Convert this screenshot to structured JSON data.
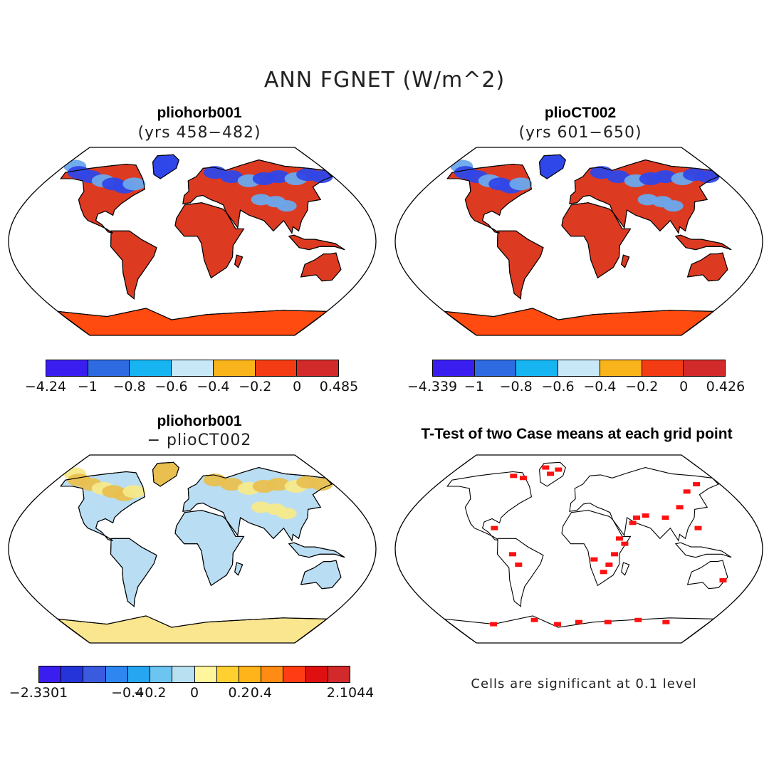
{
  "title": "ANN FGNET (W/m^2)",
  "panels": [
    {
      "title": "pliohorb001",
      "subtitle": "(yrs 458−482)",
      "colorbar": {
        "colors": [
          "#3a1ef0",
          "#2e6ae0",
          "#16b4f0",
          "#c8e8f8",
          "#f8b41a",
          "#f43c14",
          "#d22a2a"
        ],
        "ticks": [
          "−4.24",
          "−1",
          "−0.8",
          "−0.6",
          "−0.4",
          "−0.2",
          "0",
          "0.485"
        ]
      }
    },
    {
      "title": "plioCT002",
      "subtitle": "(yrs 601−650)",
      "colorbar": {
        "colors": [
          "#3a1ef0",
          "#2e6ae0",
          "#16b4f0",
          "#c8e8f8",
          "#f8b41a",
          "#f43c14",
          "#d22a2a"
        ],
        "ticks": [
          "−4.339",
          "−1",
          "−0.8",
          "−0.6",
          "−0.4",
          "−0.2",
          "0",
          "0.426"
        ]
      }
    },
    {
      "title": "pliohorb001",
      "subtitle": "− plioCT002",
      "colorbar": {
        "colors": [
          "#3a1ef0",
          "#2434d8",
          "#3a5ae0",
          "#2e86f0",
          "#26a6f0",
          "#6cc4f0",
          "#b8e0f0",
          "#fff59c",
          "#ffd030",
          "#ffb41a",
          "#ff8a14",
          "#ff3c14",
          "#e01010",
          "#d22a2a"
        ],
        "ticks": [
          "−2.3301",
          "−0.4",
          "−0.2",
          "0",
          "0.2",
          "0.4",
          "2.1044"
        ]
      }
    },
    {
      "title": "T-Test of two Case means at each grid point",
      "subtitle": ""
    }
  ],
  "note": "Cells are significant at 0.1 level",
  "map_themes": {
    "absolute": {
      "land": "#dd3a22",
      "north": "#2f47e8",
      "midnorth": "#6aa8ec",
      "antarctic": "#ff4a10"
    },
    "difference": {
      "land": "#b9ddf2",
      "north": "#e9c050",
      "midnorth": "#f5e98a",
      "antarctic": "#fbe690"
    },
    "ttest": {
      "land": "#ffffff",
      "dots": "#ff1010"
    }
  }
}
